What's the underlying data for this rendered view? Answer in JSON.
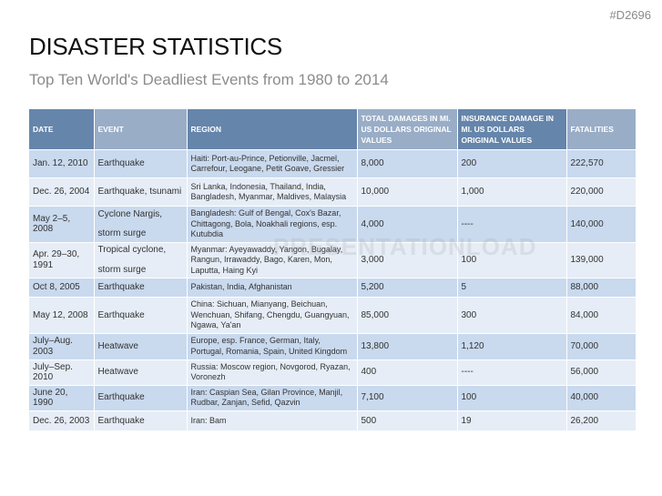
{
  "code": "#D2696",
  "title": "DISASTER STATISTICS",
  "subtitle": "Top Ten World's Deadliest Events from 1980 to 2014",
  "watermark": "PRESENTATIONLOAD",
  "headers": [
    "Date",
    "Event",
    "Region",
    "Total damages in mi. US dollars original values",
    "Insurance damage in mi. US dollars original values",
    "Fatalities"
  ],
  "rows": [
    {
      "date": "Jan. 12, 2010",
      "event": "Earthquake",
      "region": "Haiti: Port-au-Prince, Petionville, Jacmel, Carrefour, Leogane, Petit Goave, Gressier",
      "total": "8,000",
      "insurance": "200",
      "fatalities": "222,570"
    },
    {
      "date": "Dec. 26, 2004",
      "event": "Earthquake, tsunami",
      "region": "Sri Lanka, Indonesia, Thailand, India, Bangladesh, Myanmar, Maldives, Malaysia",
      "total": "10,000",
      "insurance": "1,000",
      "fatalities": "220,000"
    },
    {
      "date": "May 2–5, 2008",
      "event": "Cyclone Nargis,",
      "event2": "storm surge",
      "region": "Bangladesh: Gulf of Bengal, Cox's Bazar, Chittagong, Bola, Noakhali regions, esp. Kutubdia",
      "total": "4,000",
      "insurance": "----",
      "fatalities": "140,000"
    },
    {
      "date": "Apr. 29–30, 1991",
      "event": "Tropical cyclone,",
      "event2": "storm surge",
      "region": "Myanmar: Ayeyawaddy, Yangon, Bugalay, Rangun, Irrawaddy, Bago, Karen, Mon, Laputta, Haing Kyi",
      "total": "3,000",
      "insurance": "100",
      "fatalities": "139,000"
    },
    {
      "date": "Oct 8, 2005",
      "event": "Earthquake",
      "region": "Pakistan, India, Afghanistan",
      "total": "5,200",
      "insurance": "5",
      "fatalities": "88,000"
    },
    {
      "date": "May 12, 2008",
      "event": "Earthquake",
      "region": "China: Sichuan, Mianyang, Beichuan, Wenchuan, Shifang, Chengdu, Guangyuan, Ngawa, Ya'an",
      "total": "85,000",
      "insurance": "300",
      "fatalities": "84,000"
    },
    {
      "date": "July–Aug. 2003",
      "event": "Heatwave",
      "region": "Europe, esp. France, German, Italy, Portugal, Romania, Spain, United Kingdom",
      "total": "13,800",
      "insurance": "1,120",
      "fatalities": "70,000"
    },
    {
      "date": "July–Sep. 2010",
      "event": "Heatwave",
      "region": "Russia: Moscow region, Novgorod, Ryazan, Voronezh",
      "total": "400",
      "insurance": "----",
      "fatalities": "56,000"
    },
    {
      "date": "June 20, 1990",
      "event": "Earthquake",
      "region": "Iran: Caspian Sea, Gilan Province, Manjil, Rudbar, Zanjan, Sefid, Qazvin",
      "total": "7,100",
      "insurance": "100",
      "fatalities": "40,000"
    },
    {
      "date": "Dec. 26, 2003",
      "event": "Earthquake",
      "region": "Iran: Bam",
      "total": "500",
      "insurance": "19",
      "fatalities": "26,200"
    }
  ]
}
